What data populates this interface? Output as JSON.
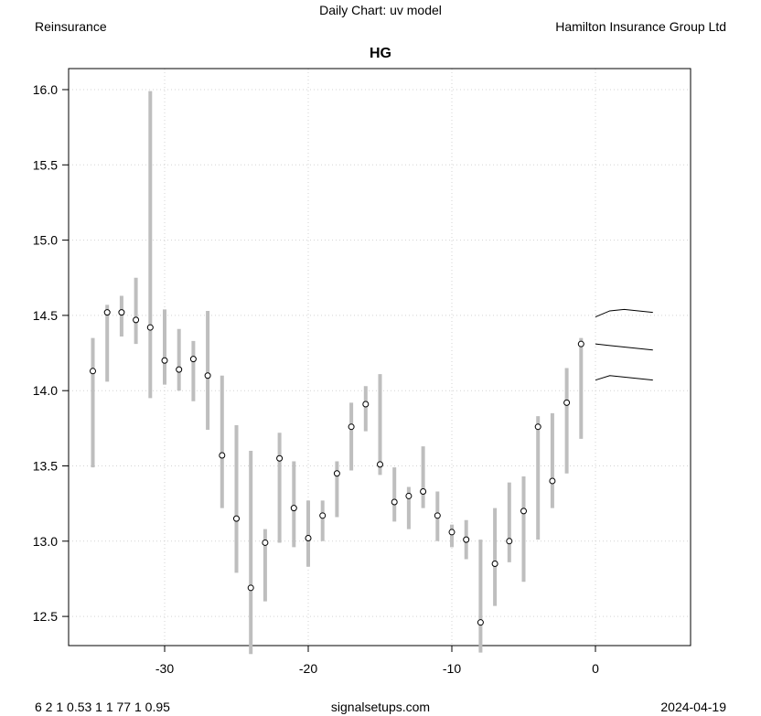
{
  "header": {
    "top_title": "Daily Chart: uv model",
    "left": "Reinsurance",
    "right": "Hamilton Insurance Group Ltd"
  },
  "footer": {
    "left": "6 2 1 0.53 1 1 77 1 0.95",
    "center": "signalsetups.com",
    "right": "2024-04-19"
  },
  "chart_data": {
    "type": "range-bar",
    "title": "HG",
    "xlim": [
      -36.5,
      6.5
    ],
    "ylim": [
      12.3,
      16.15
    ],
    "xticks": [
      -30,
      -20,
      -10,
      0
    ],
    "yticks": [
      12.5,
      13.0,
      13.5,
      14.0,
      14.5,
      15.0,
      15.5,
      16.0
    ],
    "xtick_labels": [
      "-30",
      "-20",
      "-10",
      "0"
    ],
    "ytick_labels": [
      "12.5",
      "13.0",
      "13.5",
      "14.0",
      "14.5",
      "15.0",
      "15.5",
      "16.0"
    ],
    "grid": true,
    "bar_color": "#bebebe",
    "bars": [
      [
        -35,
        14.13,
        14.35,
        13.49
      ],
      [
        -34,
        14.52,
        14.57,
        14.06
      ],
      [
        -33,
        14.52,
        14.63,
        14.36
      ],
      [
        -32,
        14.47,
        14.75,
        14.31
      ],
      [
        -31,
        14.42,
        15.99,
        13.95
      ],
      [
        -30,
        14.2,
        14.54,
        14.04
      ],
      [
        -29,
        14.14,
        14.41,
        14.0
      ],
      [
        -28,
        14.21,
        14.33,
        13.93
      ],
      [
        -27,
        14.1,
        14.53,
        13.74
      ],
      [
        -26,
        13.57,
        14.1,
        13.22
      ],
      [
        -25,
        13.15,
        13.77,
        12.79
      ],
      [
        -24,
        12.69,
        13.6,
        12.25
      ],
      [
        -23,
        12.99,
        13.08,
        12.6
      ],
      [
        -22,
        13.55,
        13.72,
        12.99
      ],
      [
        -21,
        13.22,
        13.53,
        12.96
      ],
      [
        -20,
        13.02,
        13.27,
        12.83
      ],
      [
        -19,
        13.17,
        13.27,
        13.0
      ],
      [
        -18,
        13.45,
        13.53,
        13.16
      ],
      [
        -17,
        13.76,
        13.92,
        13.47
      ],
      [
        -16,
        13.91,
        14.03,
        13.73
      ],
      [
        -15,
        13.51,
        14.11,
        13.44
      ],
      [
        -14,
        13.26,
        13.49,
        13.13
      ],
      [
        -13,
        13.3,
        13.36,
        13.08
      ],
      [
        -12,
        13.33,
        13.63,
        13.22
      ],
      [
        -11,
        13.17,
        13.33,
        13.0
      ],
      [
        -10,
        13.06,
        13.11,
        12.96
      ],
      [
        -9,
        13.01,
        13.14,
        12.88
      ],
      [
        -8,
        12.46,
        13.01,
        12.26
      ],
      [
        -7,
        12.85,
        13.22,
        12.57
      ],
      [
        -6,
        13.0,
        13.39,
        12.86
      ],
      [
        -5,
        13.2,
        13.43,
        12.73
      ],
      [
        -4,
        13.76,
        13.83,
        13.01
      ],
      [
        -3,
        13.4,
        13.85,
        13.22
      ],
      [
        -2,
        13.92,
        14.15,
        13.45
      ],
      [
        -1,
        14.31,
        14.35,
        13.68
      ]
    ],
    "bar_fields": [
      "x",
      "close",
      "high",
      "low"
    ],
    "forecast_x": [
      0,
      1,
      2,
      3,
      4
    ],
    "forecast_series": [
      {
        "name": "upper",
        "values": [
          14.49,
          14.53,
          14.54,
          14.53,
          14.52
        ]
      },
      {
        "name": "mid",
        "values": [
          14.31,
          14.3,
          14.29,
          14.28,
          14.27
        ]
      },
      {
        "name": "lower",
        "values": [
          14.07,
          14.1,
          14.09,
          14.08,
          14.07
        ]
      }
    ]
  }
}
